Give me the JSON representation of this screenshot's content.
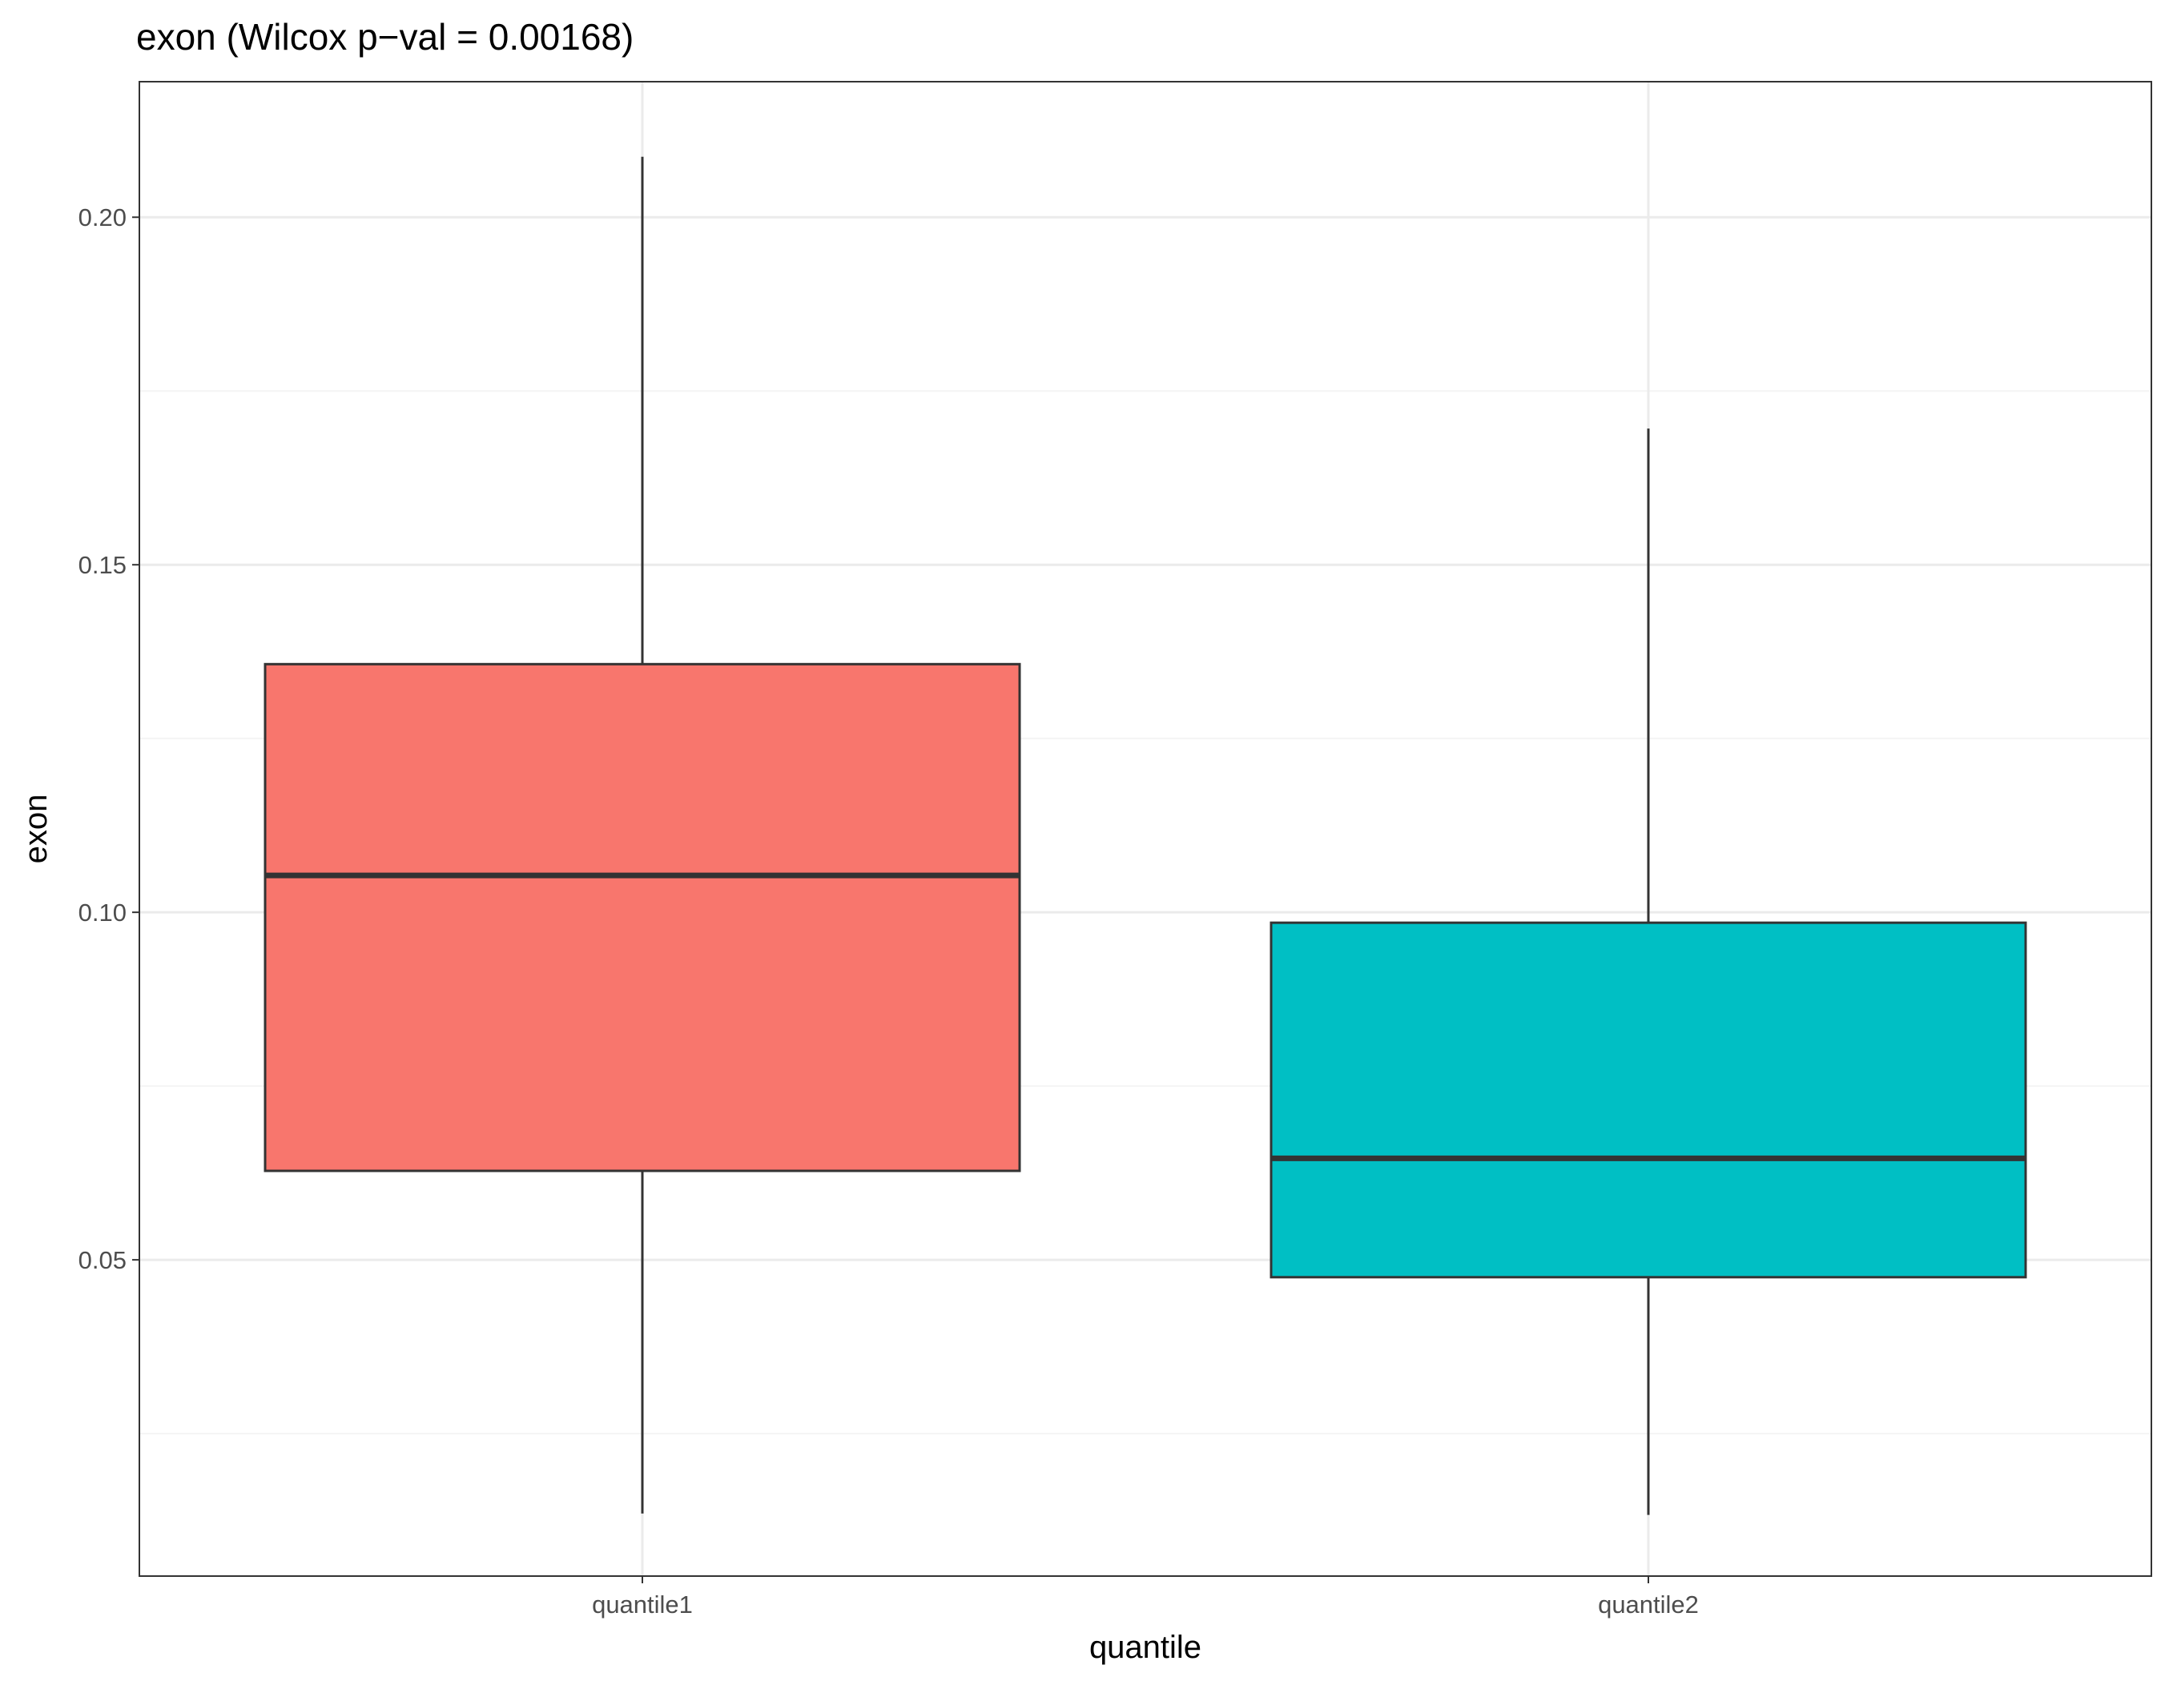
{
  "chart_data": {
    "type": "boxplot",
    "title": "exon (Wilcox p−val = 0.00168)",
    "xlabel": "quantile",
    "ylabel": "exon",
    "categories": [
      "quantile1",
      "quantile2"
    ],
    "ylim": [
      0.0045,
      0.2195
    ],
    "yticks": [
      0.05,
      0.1,
      0.15,
      0.2
    ],
    "ytick_labels": [
      "0.05",
      "0.10",
      "0.15",
      "0.20"
    ],
    "grid": true,
    "series": [
      {
        "name": "quantile1",
        "whisker_low": 0.0135,
        "q1": 0.0628,
        "median": 0.1053,
        "q3": 0.1357,
        "whisker_high": 0.2087,
        "fill": "#F8766D"
      },
      {
        "name": "quantile2",
        "whisker_low": 0.0133,
        "q1": 0.0475,
        "median": 0.0646,
        "q3": 0.0985,
        "whisker_high": 0.1696,
        "fill": "#00BFC4"
      }
    ]
  },
  "colors": {
    "grid_major": "#ebebeb",
    "grid_minor": "#f4f4f4",
    "panel_border": "#333333",
    "box_line": "#333333",
    "tick_label": "#4d4d4d"
  }
}
